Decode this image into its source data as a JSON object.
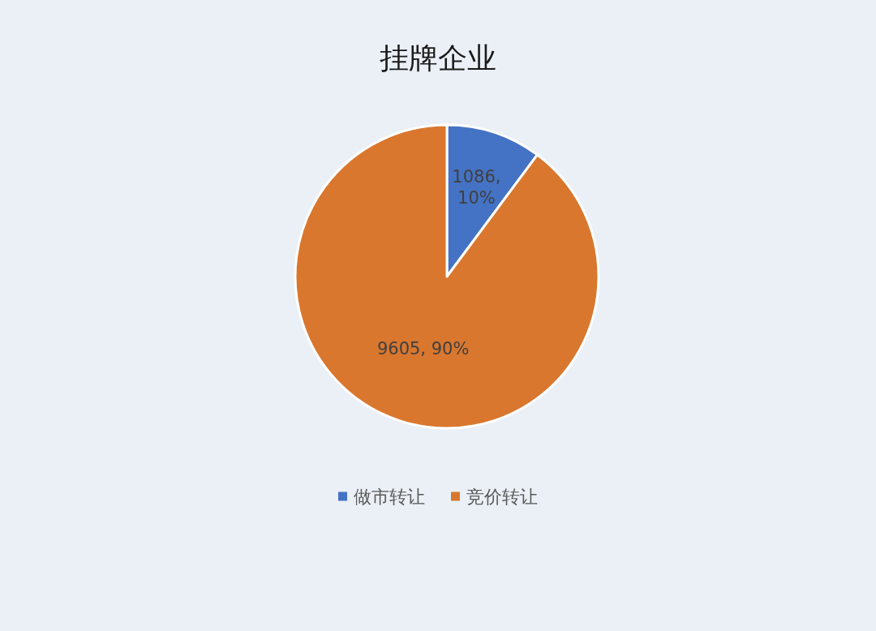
{
  "chart_data": {
    "type": "pie",
    "title": "挂牌企业",
    "categories": [
      "做市转让",
      "竞价转让"
    ],
    "values": [
      1086,
      9605
    ],
    "colors": [
      "#4472c4",
      "#d9772e"
    ],
    "value_labels": [
      "1086, 10%",
      "9605, 90%"
    ],
    "legend": "bottom"
  }
}
